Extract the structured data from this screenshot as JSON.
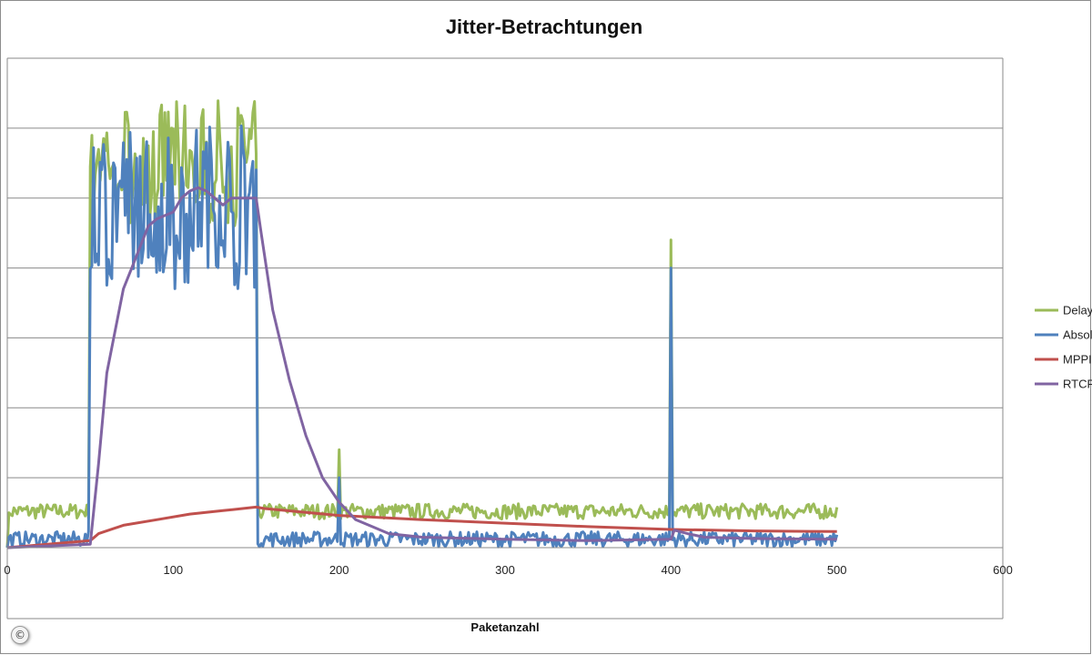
{
  "chart_data": {
    "type": "line",
    "title": "Jitter-Betrachtungen",
    "xlabel": "Paketanzahl",
    "ylabel": "",
    "xlim": [
      0,
      600
    ],
    "ylim": [
      0,
      70
    ],
    "x_ticks": [
      0,
      100,
      200,
      300,
      400,
      500,
      600
    ],
    "y_gridlines": [
      10,
      20,
      30,
      40,
      50,
      60,
      70
    ],
    "grid": true,
    "legend_position": "right",
    "series": [
      {
        "name": "Delay",
        "color": "#9BBB59",
        "description_points": [
          [
            0,
            2
          ],
          [
            2,
            5.5
          ],
          [
            50,
            5
          ],
          [
            50,
            66
          ],
          [
            150,
            65
          ],
          [
            152,
            5.5
          ],
          [
            200,
            5
          ],
          [
            201,
            14
          ],
          [
            202,
            5
          ],
          [
            400,
            5
          ],
          [
            401,
            44
          ],
          [
            402,
            5
          ],
          [
            500,
            5
          ]
        ],
        "baseline": 5.2,
        "burst_range": [
          48,
          64
        ],
        "burst_x": [
          50,
          150
        ]
      },
      {
        "name": "Absolut",
        "color": "#4F81BD",
        "baseline": 1.2,
        "burst_range": [
          40,
          61
        ],
        "burst_x": [
          50,
          150
        ],
        "spikes": [
          [
            200,
            10
          ],
          [
            400,
            40
          ]
        ]
      },
      {
        "name": "MPPI",
        "color": "#C0504D",
        "points": [
          [
            0,
            0
          ],
          [
            50,
            1
          ],
          [
            55,
            2
          ],
          [
            70,
            3.2
          ],
          [
            90,
            4
          ],
          [
            110,
            4.8
          ],
          [
            130,
            5.3
          ],
          [
            150,
            5.8
          ],
          [
            155,
            5.6
          ],
          [
            200,
            4.6
          ],
          [
            250,
            4
          ],
          [
            300,
            3.5
          ],
          [
            350,
            3
          ],
          [
            400,
            2.6
          ],
          [
            450,
            2.4
          ],
          [
            500,
            2.3
          ]
        ]
      },
      {
        "name": "RTCP",
        "color": "#8064A2",
        "points": [
          [
            0,
            0
          ],
          [
            50,
            0.5
          ],
          [
            55,
            12
          ],
          [
            60,
            25
          ],
          [
            65,
            31
          ],
          [
            70,
            37
          ],
          [
            75,
            40
          ],
          [
            80,
            43
          ],
          [
            85,
            46
          ],
          [
            90,
            47
          ],
          [
            95,
            47.5
          ],
          [
            100,
            48
          ],
          [
            105,
            50
          ],
          [
            110,
            51
          ],
          [
            115,
            51.5
          ],
          [
            120,
            51
          ],
          [
            125,
            50
          ],
          [
            130,
            49
          ],
          [
            135,
            50
          ],
          [
            140,
            50
          ],
          [
            145,
            50
          ],
          [
            150,
            50
          ],
          [
            153,
            45
          ],
          [
            160,
            34
          ],
          [
            170,
            24
          ],
          [
            180,
            16
          ],
          [
            190,
            10
          ],
          [
            200,
            6.5
          ],
          [
            210,
            4
          ],
          [
            220,
            3
          ],
          [
            230,
            2
          ],
          [
            250,
            1.5
          ],
          [
            300,
            1.2
          ],
          [
            350,
            1
          ],
          [
            400,
            1.2
          ],
          [
            402,
            2.5
          ],
          [
            410,
            2
          ],
          [
            420,
            1.5
          ],
          [
            450,
            1.3
          ],
          [
            500,
            1.2
          ]
        ]
      }
    ]
  },
  "legend": {
    "items": [
      "Delay",
      "Absolut",
      "MPPI",
      "RTCP"
    ]
  },
  "copyright_symbol": "©"
}
